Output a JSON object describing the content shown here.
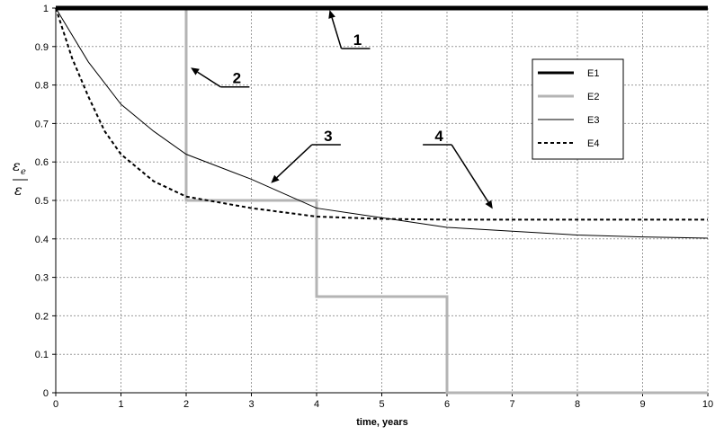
{
  "chart_data": {
    "type": "line",
    "title": "",
    "xlabel": "time, years",
    "ylabel_numerator": "ε",
    "ylabel_numerator_sub": "e",
    "ylabel_denominator": "ε",
    "xlim": [
      0,
      10
    ],
    "ylim": [
      0,
      1
    ],
    "x_ticks": [
      0,
      1,
      2,
      3,
      4,
      5,
      6,
      7,
      8,
      9,
      10
    ],
    "x_tick_labels": [
      "0",
      "1",
      "2",
      "3",
      "4",
      "5",
      "6",
      "7",
      "8",
      "9",
      "10"
    ],
    "y_ticks": [
      0,
      0.1,
      0.2,
      0.3,
      0.4,
      0.5,
      0.6,
      0.7,
      0.8,
      0.9,
      1
    ],
    "y_tick_labels": [
      "0",
      "0.1",
      "0.2",
      "0.3",
      "0.4",
      "0.5",
      "0.6",
      "0.7",
      "0.8",
      "0.9",
      "1"
    ],
    "grid": true,
    "legend_position": "top-right",
    "series": [
      {
        "name": "E1",
        "color": "#000000",
        "style": "solid-thick",
        "x": [
          0,
          10
        ],
        "y": [
          1,
          1
        ]
      },
      {
        "name": "E2",
        "color": "#b4b4b4",
        "style": "solid-thick-step",
        "x": [
          0,
          2,
          2,
          4,
          4,
          6,
          6,
          10
        ],
        "y": [
          1,
          1,
          0.5,
          0.5,
          0.25,
          0.25,
          0,
          0
        ]
      },
      {
        "name": "E3",
        "color": "#000000",
        "style": "solid-thin",
        "x": [
          0,
          0.5,
          1,
          1.5,
          2,
          3,
          4,
          5,
          6,
          7,
          8,
          9,
          10
        ],
        "y": [
          1,
          0.86,
          0.75,
          0.68,
          0.62,
          0.555,
          0.48,
          0.455,
          0.43,
          0.42,
          0.41,
          0.405,
          0.402
        ]
      },
      {
        "name": "E4",
        "color": "#000000",
        "style": "dashed",
        "x": [
          0,
          0.25,
          0.5,
          0.75,
          1,
          1.5,
          2,
          3,
          4,
          5,
          6,
          7,
          8,
          9,
          10
        ],
        "y": [
          1,
          0.87,
          0.77,
          0.68,
          0.62,
          0.55,
          0.51,
          0.48,
          0.458,
          0.452,
          0.45,
          0.45,
          0.45,
          0.45,
          0.45
        ]
      }
    ],
    "annotations": [
      {
        "label": "1",
        "target_x": 4.2,
        "target_y": 0.995,
        "text_x": 4.6,
        "text_y": 0.895
      },
      {
        "label": "2",
        "target_x": 2.07,
        "target_y": 0.845,
        "text_x": 2.75,
        "text_y": 0.795
      },
      {
        "label": "3",
        "target_x": 3.3,
        "target_y": 0.545,
        "text_x": 4.15,
        "text_y": 0.645
      },
      {
        "label": "4",
        "target_x": 6.7,
        "target_y": 0.478,
        "text_x": 5.85,
        "text_y": 0.645
      }
    ]
  }
}
